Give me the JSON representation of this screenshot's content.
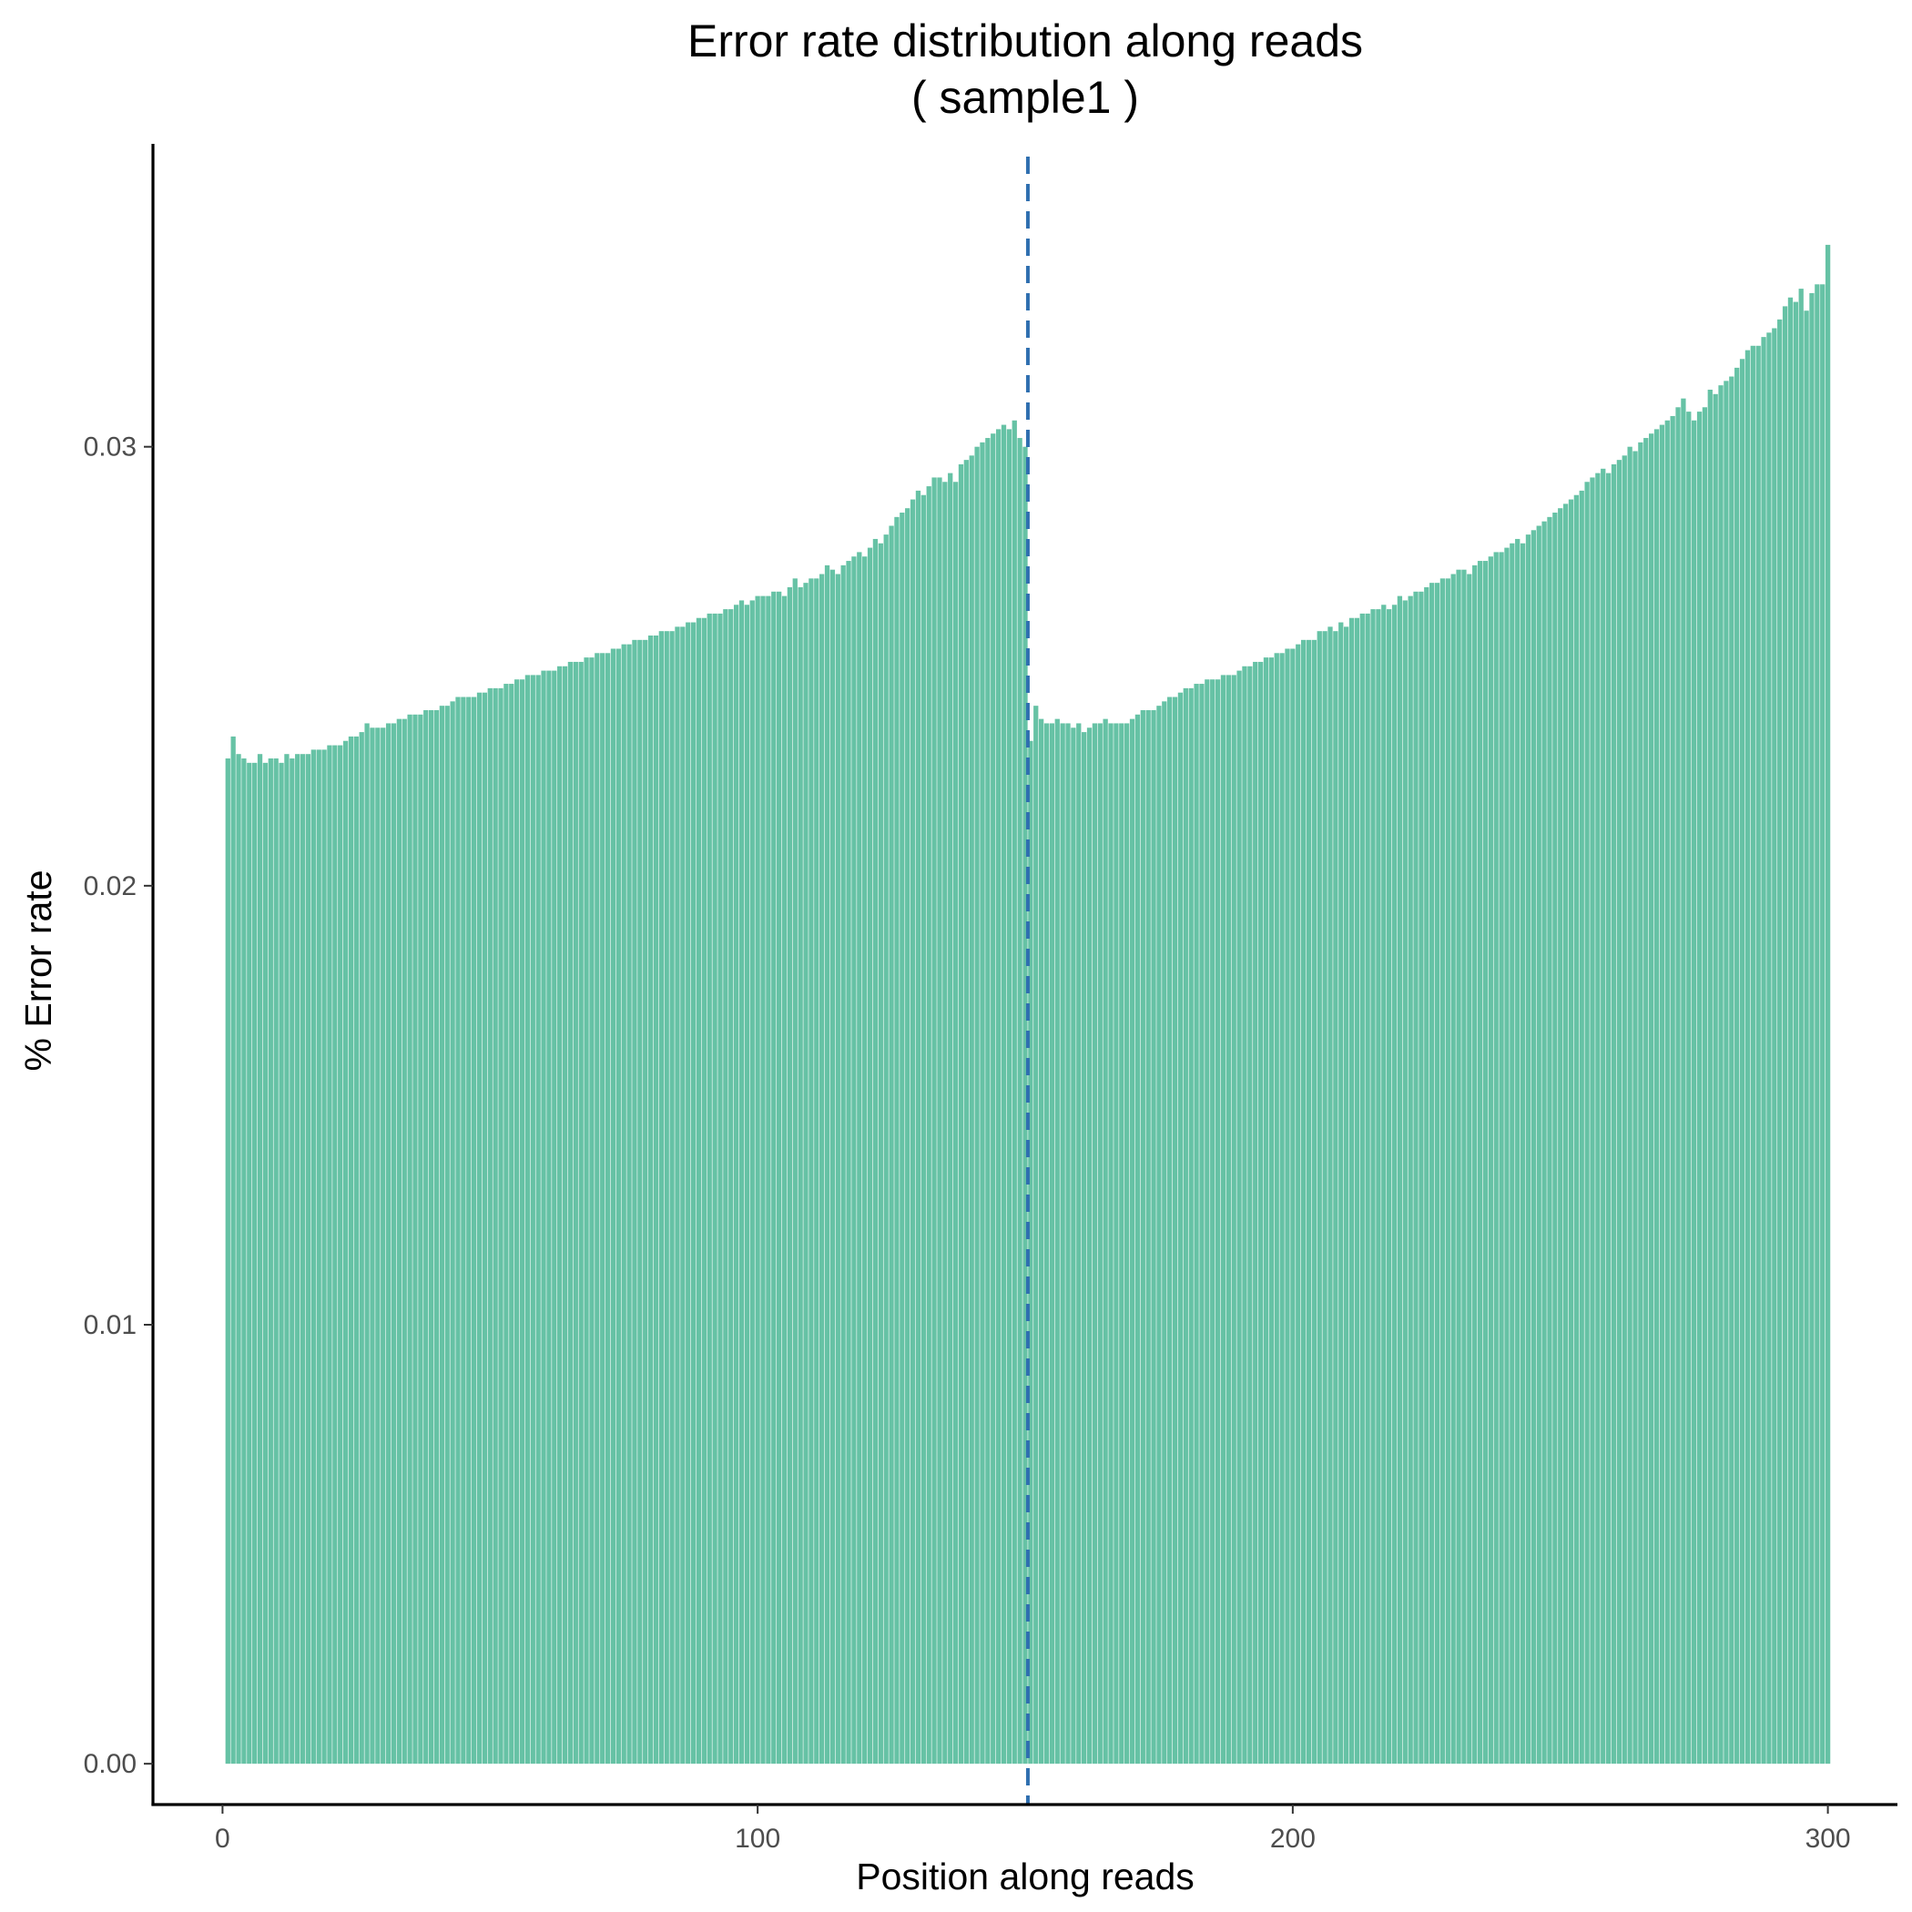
{
  "chart_data": {
    "type": "bar",
    "title": "Error rate distribution along reads",
    "subtitle": "( sample1 )",
    "xlabel": "Position along reads",
    "ylabel": "% Error rate",
    "xlim": [
      -13,
      313
    ],
    "ylim": [
      -0.00093,
      0.0369
    ],
    "x_ticks": [
      0,
      100,
      200,
      300
    ],
    "x_tick_labels": [
      "0",
      "100",
      "200",
      "300"
    ],
    "y_ticks": [
      0,
      0.01,
      0.02,
      0.03
    ],
    "y_tick_labels": [
      "0.00",
      "0.01",
      "0.02",
      "0.03"
    ],
    "grid": false,
    "legend": "none",
    "bar_color": "#66c2a5",
    "reference_line": {
      "x": 150.5,
      "color": "#2f6fb0",
      "style": "dashed"
    },
    "x": [
      1,
      2,
      3,
      4,
      5,
      6,
      7,
      8,
      9,
      10,
      11,
      12,
      13,
      14,
      15,
      16,
      17,
      18,
      19,
      20,
      21,
      22,
      23,
      24,
      25,
      26,
      27,
      28,
      29,
      30,
      31,
      32,
      33,
      34,
      35,
      36,
      37,
      38,
      39,
      40,
      41,
      42,
      43,
      44,
      45,
      46,
      47,
      48,
      49,
      50,
      51,
      52,
      53,
      54,
      55,
      56,
      57,
      58,
      59,
      60,
      61,
      62,
      63,
      64,
      65,
      66,
      67,
      68,
      69,
      70,
      71,
      72,
      73,
      74,
      75,
      76,
      77,
      78,
      79,
      80,
      81,
      82,
      83,
      84,
      85,
      86,
      87,
      88,
      89,
      90,
      91,
      92,
      93,
      94,
      95,
      96,
      97,
      98,
      99,
      100,
      101,
      102,
      103,
      104,
      105,
      106,
      107,
      108,
      109,
      110,
      111,
      112,
      113,
      114,
      115,
      116,
      117,
      118,
      119,
      120,
      121,
      122,
      123,
      124,
      125,
      126,
      127,
      128,
      129,
      130,
      131,
      132,
      133,
      134,
      135,
      136,
      137,
      138,
      139,
      140,
      141,
      142,
      143,
      144,
      145,
      146,
      147,
      148,
      149,
      150,
      151,
      152,
      153,
      154,
      155,
      156,
      157,
      158,
      159,
      160,
      161,
      162,
      163,
      164,
      165,
      166,
      167,
      168,
      169,
      170,
      171,
      172,
      173,
      174,
      175,
      176,
      177,
      178,
      179,
      180,
      181,
      182,
      183,
      184,
      185,
      186,
      187,
      188,
      189,
      190,
      191,
      192,
      193,
      194,
      195,
      196,
      197,
      198,
      199,
      200,
      201,
      202,
      203,
      204,
      205,
      206,
      207,
      208,
      209,
      210,
      211,
      212,
      213,
      214,
      215,
      216,
      217,
      218,
      219,
      220,
      221,
      222,
      223,
      224,
      225,
      226,
      227,
      228,
      229,
      230,
      231,
      232,
      233,
      234,
      235,
      236,
      237,
      238,
      239,
      240,
      241,
      242,
      243,
      244,
      245,
      246,
      247,
      248,
      249,
      250,
      251,
      252,
      253,
      254,
      255,
      256,
      257,
      258,
      259,
      260,
      261,
      262,
      263,
      264,
      265,
      266,
      267,
      268,
      269,
      270,
      271,
      272,
      273,
      274,
      275,
      276,
      277,
      278,
      279,
      280,
      281,
      282,
      283,
      284,
      285,
      286,
      287,
      288,
      289,
      290,
      291,
      292,
      293,
      294,
      295,
      296,
      297,
      298,
      299,
      300
    ],
    "values": [
      0.0229,
      0.0234,
      0.023,
      0.0229,
      0.0228,
      0.0228,
      0.023,
      0.0228,
      0.0229,
      0.0229,
      0.0228,
      0.023,
      0.0229,
      0.023,
      0.023,
      0.023,
      0.0231,
      0.0231,
      0.0231,
      0.0232,
      0.0232,
      0.0232,
      0.0233,
      0.0234,
      0.0234,
      0.0235,
      0.0237,
      0.0236,
      0.0236,
      0.0236,
      0.0237,
      0.0237,
      0.0238,
      0.0238,
      0.0239,
      0.0239,
      0.0239,
      0.024,
      0.024,
      0.024,
      0.0241,
      0.0241,
      0.0242,
      0.0243,
      0.0243,
      0.0243,
      0.0243,
      0.0244,
      0.0244,
      0.0245,
      0.0245,
      0.0245,
      0.0246,
      0.0246,
      0.0247,
      0.0247,
      0.0248,
      0.0248,
      0.0248,
      0.0249,
      0.0249,
      0.0249,
      0.025,
      0.025,
      0.0251,
      0.0251,
      0.0251,
      0.0252,
      0.0252,
      0.0253,
      0.0253,
      0.0253,
      0.0254,
      0.0254,
      0.0255,
      0.0255,
      0.0256,
      0.0256,
      0.0256,
      0.0257,
      0.0257,
      0.0258,
      0.0258,
      0.0258,
      0.0259,
      0.0259,
      0.026,
      0.026,
      0.0261,
      0.0261,
      0.0262,
      0.0262,
      0.0262,
      0.0263,
      0.0263,
      0.0264,
      0.0265,
      0.0264,
      0.0265,
      0.0266,
      0.0266,
      0.0266,
      0.0267,
      0.0267,
      0.0266,
      0.0268,
      0.027,
      0.0268,
      0.0269,
      0.027,
      0.027,
      0.0271,
      0.0273,
      0.0272,
      0.0271,
      0.0273,
      0.0274,
      0.0275,
      0.0276,
      0.0275,
      0.0277,
      0.0279,
      0.0278,
      0.028,
      0.0282,
      0.0284,
      0.0285,
      0.0286,
      0.0288,
      0.029,
      0.0289,
      0.0291,
      0.0293,
      0.0293,
      0.0292,
      0.0294,
      0.0292,
      0.0296,
      0.0297,
      0.0298,
      0.03,
      0.0301,
      0.0302,
      0.0303,
      0.0304,
      0.0305,
      0.0304,
      0.0306,
      0.0302,
      0.03,
      0.0233,
      0.0241,
      0.0238,
      0.0237,
      0.0237,
      0.0238,
      0.0237,
      0.0237,
      0.0236,
      0.0237,
      0.0235,
      0.0236,
      0.0237,
      0.0237,
      0.0238,
      0.0237,
      0.0237,
      0.0237,
      0.0237,
      0.0238,
      0.0239,
      0.024,
      0.024,
      0.024,
      0.0241,
      0.0242,
      0.0243,
      0.0243,
      0.0244,
      0.0245,
      0.0245,
      0.0246,
      0.0246,
      0.0247,
      0.0247,
      0.0247,
      0.0248,
      0.0248,
      0.0248,
      0.0249,
      0.025,
      0.025,
      0.0251,
      0.0251,
      0.0252,
      0.0252,
      0.0253,
      0.0253,
      0.0254,
      0.0254,
      0.0255,
      0.0256,
      0.0256,
      0.0256,
      0.0258,
      0.0258,
      0.0259,
      0.0258,
      0.026,
      0.0259,
      0.0261,
      0.0261,
      0.0262,
      0.0262,
      0.0263,
      0.0263,
      0.0264,
      0.0263,
      0.0264,
      0.0266,
      0.0265,
      0.0266,
      0.0267,
      0.0267,
      0.0268,
      0.0269,
      0.0269,
      0.027,
      0.027,
      0.0271,
      0.0272,
      0.0272,
      0.0271,
      0.0273,
      0.0274,
      0.0274,
      0.0275,
      0.0276,
      0.0276,
      0.0277,
      0.0278,
      0.0279,
      0.0278,
      0.028,
      0.0281,
      0.0282,
      0.0283,
      0.0284,
      0.0285,
      0.0286,
      0.0287,
      0.0288,
      0.0289,
      0.029,
      0.0292,
      0.0293,
      0.0294,
      0.0295,
      0.0294,
      0.0296,
      0.0297,
      0.0298,
      0.03,
      0.0299,
      0.0301,
      0.0302,
      0.0303,
      0.0304,
      0.0305,
      0.0306,
      0.0307,
      0.0309,
      0.0311,
      0.0308,
      0.0306,
      0.0308,
      0.0309,
      0.0313,
      0.0312,
      0.0314,
      0.0315,
      0.0316,
      0.0318,
      0.032,
      0.0322,
      0.0323,
      0.0323,
      0.0325,
      0.0326,
      0.0327,
      0.0329,
      0.0332,
      0.0334,
      0.0333,
      0.0336,
      0.0331,
      0.0335,
      0.0337,
      0.0337,
      0.0346
    ]
  }
}
